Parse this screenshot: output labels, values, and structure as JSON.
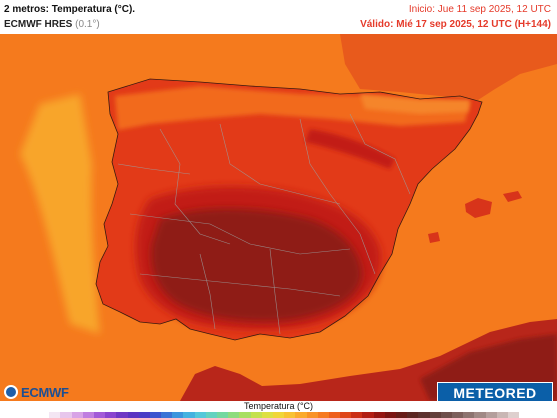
{
  "header": {
    "title": "2 metros: Temperatura (°C).",
    "model": "ECMWF HRES",
    "resolution": "(0.1°)",
    "init": "Inicio: Jue 11 sep 2025, 12 UTC",
    "valid": "Válido: Mié 17 sep 2025, 12 UTC (H+144)"
  },
  "logos": {
    "ecmwf": "ECMWF",
    "meteored": "METEORED"
  },
  "legend": {
    "title": "Temperatura (°C)",
    "colors": [
      "#ffffff",
      "#f3e6f3",
      "#e7c6ec",
      "#d8a3e6",
      "#c07ee0",
      "#a35ad8",
      "#8a44cf",
      "#6f37c5",
      "#5a34c2",
      "#4a3dc6",
      "#3c55cf",
      "#3a74d6",
      "#3c95dd",
      "#45b2e0",
      "#55c8da",
      "#64d2c0",
      "#74d8a0",
      "#8ddc7e",
      "#a8df62",
      "#c4e14e",
      "#dde043",
      "#f0d63a",
      "#f8c233",
      "#fbaa2c",
      "#f99226",
      "#f67a20",
      "#ee5f1c",
      "#df4519",
      "#cc2f16",
      "#b21e14",
      "#951612",
      "#7b1512",
      "#671c17",
      "#5c2722",
      "#5d322e",
      "#63403c",
      "#6e4f4b",
      "#7c605c",
      "#8d7470",
      "#a08985",
      "#b49f9c",
      "#c9b7b4",
      "#ded0ce"
    ]
  },
  "map_colors": {
    "sea": "#f57a1d",
    "sea_cool": "#f8a52c",
    "warm": "#e23a18",
    "hot": "#c21f14",
    "very_hot": "#8f1a13",
    "mild": "#f26a1e",
    "borders": "#9c9c9c"
  }
}
